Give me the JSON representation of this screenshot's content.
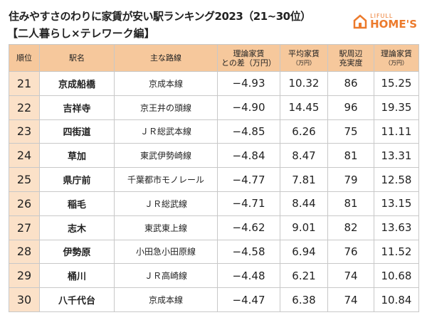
{
  "header": {
    "title": "住みやすさのわりに家賃が安い駅ランキング2023（21~30位）",
    "subtitle": "【二人暮らし×テレワーク編】"
  },
  "logo": {
    "brand": "LIFULL",
    "name": "HOME'S"
  },
  "table": {
    "columns": [
      [
        "順位"
      ],
      [
        "駅名"
      ],
      [
        "主な路線"
      ],
      [
        "理論家賃",
        "との差（万円）"
      ],
      [
        "平均家賃",
        "（万円）"
      ],
      [
        "駅周辺",
        "充実度"
      ],
      [
        "理論家賃",
        "（万円）"
      ]
    ],
    "rows": [
      [
        "21",
        "京成船橋",
        "京成本線",
        "−4.93",
        "10.32",
        "86",
        "15.25"
      ],
      [
        "22",
        "吉祥寺",
        "京王井の頭線",
        "−4.90",
        "14.45",
        "96",
        "19.35"
      ],
      [
        "23",
        "四街道",
        "ＪＲ総武本線",
        "−4.85",
        "6.26",
        "75",
        "11.11"
      ],
      [
        "24",
        "草加",
        "東武伊勢崎線",
        "−4.84",
        "8.47",
        "81",
        "13.31"
      ],
      [
        "25",
        "県庁前",
        "千葉都市モノレール",
        "−4.77",
        "7.81",
        "79",
        "12.58"
      ],
      [
        "26",
        "稲毛",
        "ＪＲ総武線",
        "−4.71",
        "8.44",
        "81",
        "13.15"
      ],
      [
        "27",
        "志木",
        "東武東上線",
        "−4.62",
        "9.01",
        "82",
        "13.63"
      ],
      [
        "28",
        "伊勢原",
        "小田急小田原線",
        "−4.58",
        "6.94",
        "76",
        "11.52"
      ],
      [
        "29",
        "桶川",
        "ＪＲ高崎線",
        "−4.48",
        "6.21",
        "74",
        "10.68"
      ],
      [
        "30",
        "八千代台",
        "京成本線",
        "−4.47",
        "6.38",
        "74",
        "10.84"
      ]
    ]
  }
}
